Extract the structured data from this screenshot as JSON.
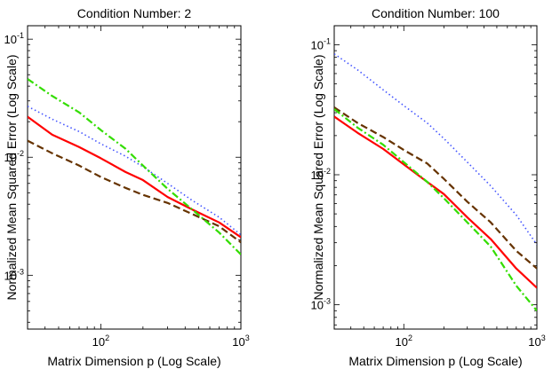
{
  "chart_data": [
    {
      "type": "line",
      "title": "Condition Number: 2",
      "xlabel": "Matrix Dimension p (Log Scale)",
      "ylabel": "Normalized Mean Squared Error (Log Scale)",
      "x_scale": "log",
      "y_scale": "log",
      "xlim": [
        30,
        1000
      ],
      "ylim": [
        0.00035,
        0.13
      ],
      "x_ticks": [
        {
          "value": 100,
          "base": "10",
          "exp": "2"
        },
        {
          "value": 1000,
          "base": "10",
          "exp": "3"
        }
      ],
      "y_ticks": [
        {
          "value": 0.001,
          "base": "10",
          "exp": "-3"
        },
        {
          "value": 0.01,
          "base": "10",
          "exp": "-2"
        },
        {
          "value": 0.1,
          "base": "10",
          "exp": "-1"
        }
      ],
      "grid": false,
      "series": [
        {
          "color": "#ff0000",
          "style": "solid",
          "x": [
            30,
            45,
            70,
            100,
            150,
            200,
            300,
            450,
            700,
            1000
          ],
          "y": [
            0.022,
            0.0155,
            0.0122,
            0.0098,
            0.0075,
            0.0064,
            0.0046,
            0.0036,
            0.0028,
            0.0021
          ]
        },
        {
          "color": "#663300",
          "style": "dashed",
          "x": [
            30,
            45,
            70,
            100,
            150,
            200,
            300,
            450,
            700,
            1000
          ],
          "y": [
            0.0138,
            0.0108,
            0.0085,
            0.0068,
            0.0055,
            0.0048,
            0.0041,
            0.0033,
            0.0026,
            0.0019
          ]
        },
        {
          "color": "#4455ff",
          "style": "dotted",
          "x": [
            30,
            45,
            70,
            100,
            150,
            200,
            300,
            450,
            700,
            1000
          ],
          "y": [
            0.027,
            0.021,
            0.0165,
            0.013,
            0.0102,
            0.0083,
            0.006,
            0.0043,
            0.0031,
            0.0022
          ]
        },
        {
          "color": "#33dd00",
          "style": "dashdot",
          "x": [
            30,
            45,
            70,
            100,
            150,
            200,
            300,
            450,
            700,
            1000
          ],
          "y": [
            0.046,
            0.033,
            0.024,
            0.017,
            0.0118,
            0.0085,
            0.0054,
            0.0036,
            0.0023,
            0.0015
          ]
        }
      ]
    },
    {
      "type": "line",
      "title": "Condition Number: 100",
      "xlabel": "Matrix Dimension p (Log Scale)",
      "ylabel": "Normalized Mean Squared Error (Log Scale)",
      "x_scale": "log",
      "y_scale": "log",
      "xlim": [
        30,
        1000
      ],
      "ylim": [
        0.00065,
        0.14
      ],
      "x_ticks": [
        {
          "value": 100,
          "base": "10",
          "exp": "2"
        },
        {
          "value": 1000,
          "base": "10",
          "exp": "3"
        }
      ],
      "y_ticks": [
        {
          "value": 0.001,
          "base": "10",
          "exp": "-3"
        },
        {
          "value": 0.01,
          "base": "10",
          "exp": "-2"
        },
        {
          "value": 0.1,
          "base": "10",
          "exp": "-1"
        }
      ],
      "grid": false,
      "series": [
        {
          "color": "#ff0000",
          "style": "solid",
          "x": [
            30,
            45,
            70,
            100,
            150,
            200,
            300,
            450,
            700,
            1000
          ],
          "y": [
            0.028,
            0.021,
            0.0158,
            0.012,
            0.0088,
            0.0071,
            0.0047,
            0.0032,
            0.0019,
            0.00135
          ]
        },
        {
          "color": "#663300",
          "style": "dashed",
          "x": [
            30,
            45,
            70,
            100,
            150,
            200,
            300,
            450,
            700,
            1000
          ],
          "y": [
            0.033,
            0.025,
            0.0195,
            0.0155,
            0.0122,
            0.0093,
            0.0062,
            0.0043,
            0.0026,
            0.0019
          ]
        },
        {
          "color": "#4455ff",
          "style": "dotted",
          "x": [
            30,
            45,
            70,
            100,
            150,
            200,
            300,
            450,
            700,
            1000
          ],
          "y": [
            0.085,
            0.064,
            0.045,
            0.034,
            0.025,
            0.019,
            0.0125,
            0.0082,
            0.0049,
            0.0029
          ]
        },
        {
          "color": "#33dd00",
          "style": "dashdot",
          "x": [
            30,
            45,
            70,
            100,
            150,
            200,
            300,
            450,
            700,
            1000
          ],
          "y": [
            0.032,
            0.023,
            0.017,
            0.0125,
            0.0088,
            0.0066,
            0.0043,
            0.0028,
            0.0014,
            0.0009
          ]
        }
      ]
    }
  ]
}
